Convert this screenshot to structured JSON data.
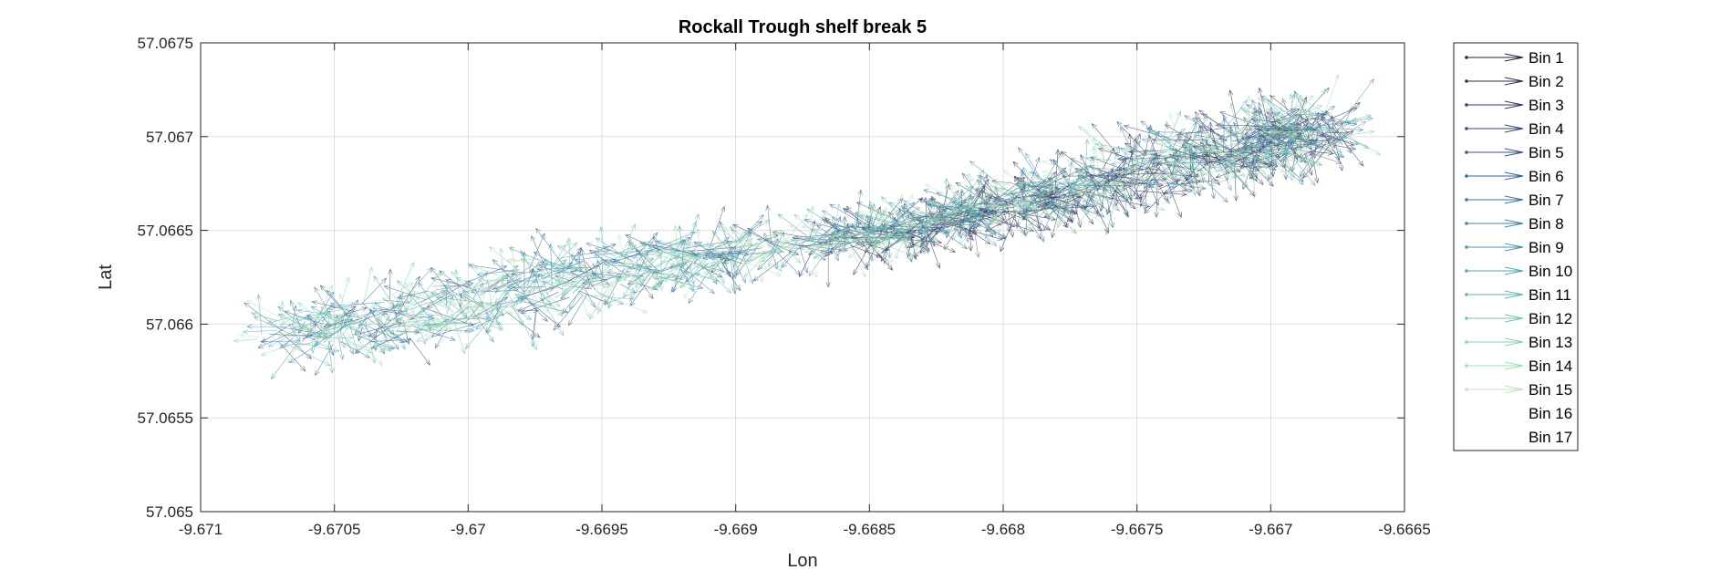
{
  "chart_data": {
    "type": "quiver",
    "title": "Rockall Trough shelf break 5",
    "xlabel": "Lon",
    "ylabel": "Lat",
    "xlim": [
      -9.671,
      -9.6665
    ],
    "ylim": [
      57.065,
      57.0675
    ],
    "xticks": [
      -9.671,
      -9.6705,
      -9.67,
      -9.6695,
      -9.669,
      -9.6685,
      -9.668,
      -9.6675,
      -9.667,
      -9.6665
    ],
    "xtick_labels": [
      "-9.671",
      "-9.6705",
      "-9.67",
      "-9.6695",
      "-9.669",
      "-9.6685",
      "-9.668",
      "-9.6675",
      "-9.667",
      "-9.6665"
    ],
    "yticks": [
      57.065,
      57.0655,
      57.066,
      57.0665,
      57.067,
      57.0675
    ],
    "ytick_labels": [
      "57.065",
      "57.0655",
      "57.066",
      "57.0665",
      "57.067",
      "57.0675"
    ],
    "grid": true,
    "legend_position": "outside-right",
    "track_path": [
      [
        -9.6707,
        57.06595
      ],
      [
        -9.6702,
        57.06605
      ],
      [
        -9.6696,
        57.06625
      ],
      [
        -9.669,
        57.06638
      ],
      [
        -9.6684,
        57.0665
      ],
      [
        -9.668,
        57.06665
      ],
      [
        -9.6676,
        57.06678
      ],
      [
        -9.6671,
        57.06695
      ],
      [
        -9.6668,
        57.06705
      ]
    ],
    "series": [
      {
        "name": "Bin 1",
        "color": "#2a1e3f"
      },
      {
        "name": "Bin 2",
        "color": "#2f2a4f"
      },
      {
        "name": "Bin 3",
        "color": "#333660"
      },
      {
        "name": "Bin 4",
        "color": "#354470"
      },
      {
        "name": "Bin 5",
        "color": "#365381"
      },
      {
        "name": "Bin 6",
        "color": "#38638f"
      },
      {
        "name": "Bin 7",
        "color": "#3b739a"
      },
      {
        "name": "Bin 8",
        "color": "#4184a2"
      },
      {
        "name": "Bin 9",
        "color": "#4995a9"
      },
      {
        "name": "Bin 10",
        "color": "#54a5ad"
      },
      {
        "name": "Bin 11",
        "color": "#62b5b0"
      },
      {
        "name": "Bin 12",
        "color": "#74c3b2"
      },
      {
        "name": "Bin 13",
        "color": "#8ad0b4"
      },
      {
        "name": "Bin 14",
        "color": "#a2dcb6"
      },
      {
        "name": "Bin 15",
        "color": "#bce6bb"
      },
      {
        "name": "Bin 16",
        "color": ""
      },
      {
        "name": "Bin 17",
        "color": ""
      }
    ]
  }
}
